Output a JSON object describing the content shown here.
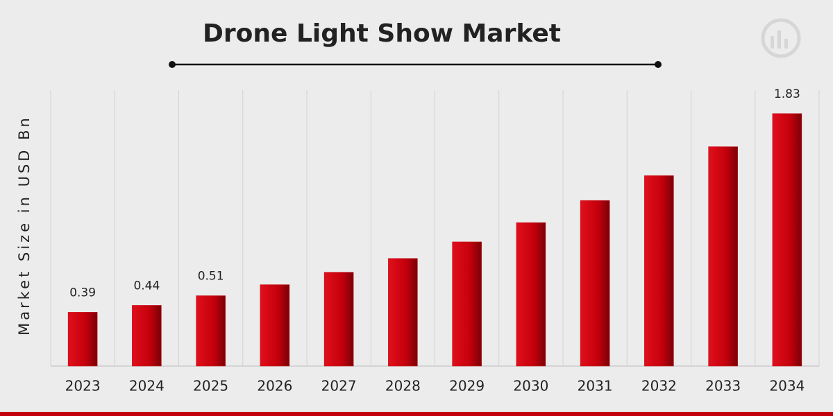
{
  "chart_data": {
    "type": "bar",
    "title": "Drone Light Show Market",
    "y_axis_label": "Market Size in USD Bn",
    "categories": [
      "2023",
      "2024",
      "2025",
      "2026",
      "2027",
      "2028",
      "2029",
      "2030",
      "2031",
      "2032",
      "2033",
      "2034"
    ],
    "values": [
      0.39,
      0.44,
      0.51,
      0.59,
      0.68,
      0.78,
      0.9,
      1.04,
      1.2,
      1.38,
      1.59,
      1.83
    ],
    "value_labels": [
      "0.39",
      "0.44",
      "0.51",
      null,
      null,
      null,
      null,
      null,
      null,
      null,
      null,
      "1.83"
    ],
    "color": "#c4000c",
    "ylim": [
      0,
      2.0
    ],
    "grid": true
  }
}
